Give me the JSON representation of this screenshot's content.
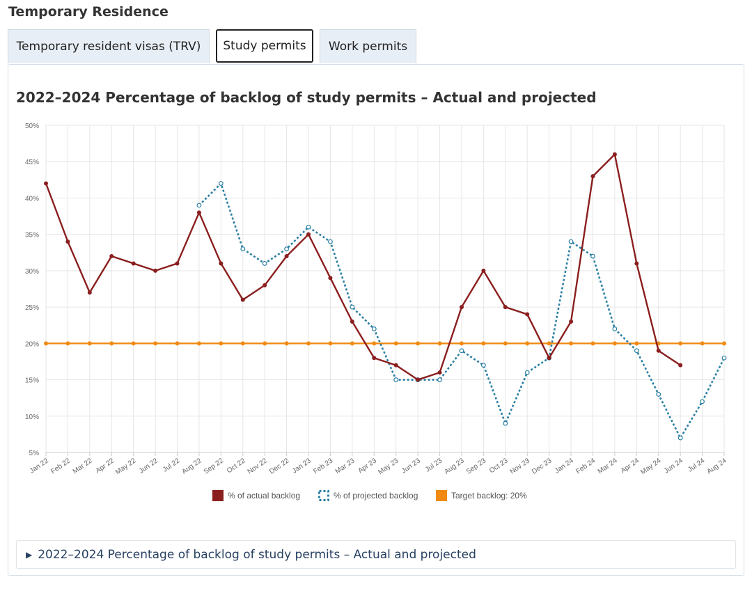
{
  "page": {
    "heading": "Temporary Residence"
  },
  "tabs": [
    {
      "label": "Temporary resident visas (TRV)",
      "active": false
    },
    {
      "label": "Study permits",
      "active": true
    },
    {
      "label": "Work permits",
      "active": false
    }
  ],
  "details_summary": "2022–2024 Percentage of backlog of study permits – Actual and projected",
  "icons": {
    "expand": "triangle-right-icon"
  },
  "chart_data": {
    "type": "line",
    "title": "2022–2024 Percentage of backlog of study permits – Actual and projected",
    "categories": [
      "Jan 22",
      "Feb 22",
      "Mar 22",
      "Apr 22",
      "May 22",
      "Jun 22",
      "Jul 22",
      "Aug 22",
      "Sep 22",
      "Oct 22",
      "Nov 22",
      "Dec 22",
      "Jan 23",
      "Feb 23",
      "Mar 23",
      "Apr 23",
      "May 23",
      "Jun 23",
      "Jul 23",
      "Aug 23",
      "Sep 23",
      "Oct 23",
      "Nov 23",
      "Dec 23",
      "Jan 24",
      "Feb 24",
      "Mar 24",
      "Apr 24",
      "May 24",
      "Jun 24",
      "Jul 24",
      "Aug 24"
    ],
    "ylim": [
      5,
      50
    ],
    "yticks": [
      "5%",
      "10%",
      "15%",
      "20%",
      "25%",
      "30%",
      "35%",
      "40%",
      "45%",
      "50%"
    ],
    "grid": true,
    "legend_position": "bottom",
    "series": [
      {
        "name": "% of actual backlog",
        "color": "#8b1e1e",
        "style": "solid",
        "values": [
          42,
          34,
          27,
          32,
          31,
          30,
          31,
          38,
          31,
          26,
          28,
          32,
          35,
          29,
          23,
          18,
          17,
          15,
          16,
          25,
          30,
          25,
          24,
          18,
          23,
          43,
          46,
          31,
          19,
          17,
          null,
          null
        ]
      },
      {
        "name": "% of projected backlog",
        "color": "#2a7fa3",
        "style": "dotted",
        "values": [
          null,
          null,
          null,
          null,
          null,
          null,
          null,
          39,
          42,
          33,
          31,
          33,
          36,
          34,
          25,
          22,
          15,
          15,
          15,
          19,
          17,
          9,
          16,
          18,
          34,
          32,
          22,
          19,
          13,
          7,
          12,
          18
        ]
      },
      {
        "name": "Target backlog: 20%",
        "color": "#f08a12",
        "style": "solid",
        "values": [
          20,
          20,
          20,
          20,
          20,
          20,
          20,
          20,
          20,
          20,
          20,
          20,
          20,
          20,
          20,
          20,
          20,
          20,
          20,
          20,
          20,
          20,
          20,
          20,
          20,
          20,
          20,
          20,
          20,
          20,
          20,
          20
        ]
      }
    ]
  }
}
